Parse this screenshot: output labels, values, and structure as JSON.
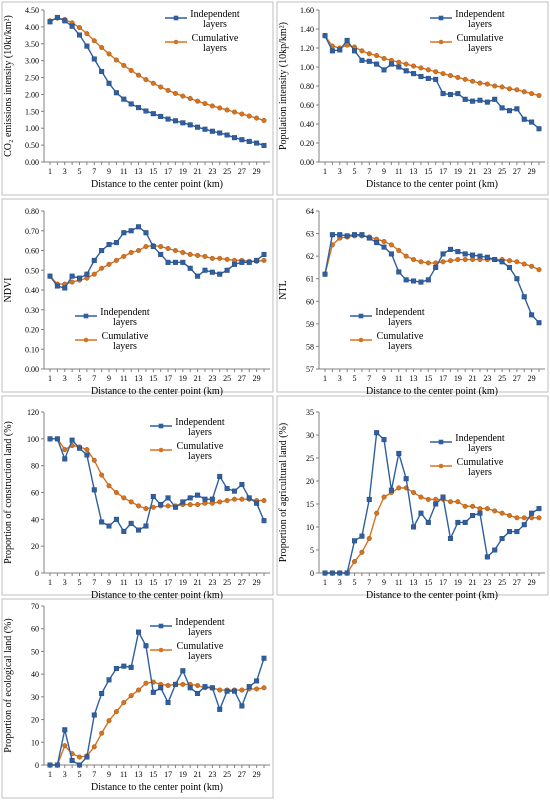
{
  "colors": {
    "independent": "#2e5fa1",
    "cumulative": "#d7731e",
    "axis": "#808080",
    "frame": "#bfbfbf"
  },
  "chart_data": [
    {
      "id": "co2",
      "type": "line",
      "title": "",
      "xlabel": "Distance to the center point (km)",
      "ylabel": "CO₂ emissions intensity (10kt/km²)",
      "x": [
        1,
        2,
        3,
        4,
        5,
        6,
        7,
        8,
        9,
        10,
        11,
        12,
        13,
        14,
        15,
        16,
        17,
        18,
        19,
        20,
        21,
        22,
        23,
        24,
        25,
        26,
        27,
        28,
        29,
        30
      ],
      "x_tick_labels": [
        "1",
        "3",
        "5",
        "7",
        "9",
        "11",
        "13",
        "15",
        "17",
        "19",
        "21",
        "23",
        "25",
        "27",
        "29"
      ],
      "ylim": [
        0,
        4.5
      ],
      "y_ticks": [
        0,
        0.5,
        1,
        1.5,
        2,
        2.5,
        3,
        3.5,
        4,
        4.5
      ],
      "y_tick_labels": [
        "0.00",
        "0.50",
        "1.00",
        "1.50",
        "2.00",
        "2.50",
        "3.00",
        "3.50",
        "4.00",
        "4.50"
      ],
      "legend_position": "top-right",
      "series": [
        {
          "name": "Independent layers",
          "values": [
            4.15,
            4.28,
            4.18,
            4.02,
            3.76,
            3.43,
            3.05,
            2.68,
            2.33,
            2.05,
            1.86,
            1.72,
            1.61,
            1.51,
            1.43,
            1.35,
            1.27,
            1.22,
            1.16,
            1.1,
            1.03,
            0.97,
            0.91,
            0.86,
            0.8,
            0.72,
            0.66,
            0.61,
            0.56,
            0.49
          ]
        },
        {
          "name": "Cumulative layers",
          "values": [
            4.18,
            4.26,
            4.22,
            4.12,
            3.98,
            3.8,
            3.59,
            3.39,
            3.2,
            3.02,
            2.86,
            2.71,
            2.57,
            2.44,
            2.33,
            2.22,
            2.12,
            2.03,
            1.95,
            1.88,
            1.8,
            1.73,
            1.66,
            1.6,
            1.54,
            1.48,
            1.42,
            1.36,
            1.3,
            1.23
          ]
        }
      ]
    },
    {
      "id": "population",
      "type": "line",
      "title": "",
      "xlabel": "Distance to the center point (km)",
      "ylabel": "Population intensity (10kp/km²)",
      "x": [
        1,
        2,
        3,
        4,
        5,
        6,
        7,
        8,
        9,
        10,
        11,
        12,
        13,
        14,
        15,
        16,
        17,
        18,
        19,
        20,
        21,
        22,
        23,
        24,
        25,
        26,
        27,
        28,
        29,
        30
      ],
      "x_tick_labels": [
        "1",
        "3",
        "5",
        "7",
        "9",
        "11",
        "13",
        "15",
        "17",
        "19",
        "21",
        "23",
        "25",
        "27",
        "29"
      ],
      "ylim": [
        0,
        1.6
      ],
      "y_ticks": [
        0,
        0.2,
        0.4,
        0.6,
        0.8,
        1.0,
        1.2,
        1.4,
        1.6
      ],
      "y_tick_labels": [
        "0.00",
        "0.20",
        "0.40",
        "0.60",
        "0.80",
        "1.00",
        "1.20",
        "1.40",
        "1.60"
      ],
      "legend_position": "top-right",
      "series": [
        {
          "name": "Independent layers",
          "values": [
            1.33,
            1.17,
            1.18,
            1.28,
            1.17,
            1.07,
            1.06,
            1.03,
            0.97,
            1.03,
            1.0,
            0.96,
            0.93,
            0.9,
            0.88,
            0.87,
            0.72,
            0.71,
            0.72,
            0.66,
            0.64,
            0.65,
            0.63,
            0.66,
            0.57,
            0.54,
            0.56,
            0.45,
            0.42,
            0.35
          ]
        },
        {
          "name": "Cumulative layers",
          "values": [
            1.33,
            1.22,
            1.2,
            1.23,
            1.21,
            1.17,
            1.14,
            1.12,
            1.09,
            1.07,
            1.05,
            1.03,
            1.01,
            0.99,
            0.97,
            0.95,
            0.93,
            0.91,
            0.89,
            0.87,
            0.85,
            0.83,
            0.82,
            0.8,
            0.79,
            0.77,
            0.76,
            0.74,
            0.72,
            0.7
          ]
        }
      ]
    },
    {
      "id": "ndvi",
      "type": "line",
      "title": "",
      "xlabel": "Distance to the center point (km)",
      "ylabel": "NDVI",
      "x": [
        1,
        2,
        3,
        4,
        5,
        6,
        7,
        8,
        9,
        10,
        11,
        12,
        13,
        14,
        15,
        16,
        17,
        18,
        19,
        20,
        21,
        22,
        23,
        24,
        25,
        26,
        27,
        28,
        29,
        30
      ],
      "x_tick_labels": [
        "1",
        "3",
        "5",
        "7",
        "9",
        "11",
        "13",
        "15",
        "17",
        "19",
        "21",
        "23",
        "25",
        "27",
        "29"
      ],
      "ylim": [
        0,
        0.8
      ],
      "y_ticks": [
        0,
        0.1,
        0.2,
        0.3,
        0.4,
        0.5,
        0.6,
        0.7,
        0.8
      ],
      "y_tick_labels": [
        "0.00",
        "0.10",
        "0.20",
        "0.30",
        "0.40",
        "0.50",
        "0.60",
        "0.70",
        "0.80"
      ],
      "legend_position": "bottom-left",
      "series": [
        {
          "name": "Independent layers",
          "values": [
            0.47,
            0.42,
            0.41,
            0.47,
            0.46,
            0.48,
            0.55,
            0.6,
            0.63,
            0.64,
            0.69,
            0.7,
            0.72,
            0.69,
            0.62,
            0.58,
            0.54,
            0.54,
            0.54,
            0.51,
            0.47,
            0.5,
            0.49,
            0.48,
            0.5,
            0.53,
            0.54,
            0.54,
            0.55,
            0.58
          ]
        },
        {
          "name": "Cumulative layers",
          "values": [
            0.47,
            0.43,
            0.43,
            0.44,
            0.45,
            0.46,
            0.48,
            0.51,
            0.53,
            0.55,
            0.57,
            0.59,
            0.6,
            0.62,
            0.625,
            0.62,
            0.61,
            0.6,
            0.59,
            0.58,
            0.575,
            0.57,
            0.56,
            0.56,
            0.555,
            0.55,
            0.55,
            0.545,
            0.545,
            0.55
          ]
        }
      ]
    },
    {
      "id": "ntl",
      "type": "line",
      "title": "",
      "xlabel": "Distance to the center point (km)",
      "ylabel": "NTL",
      "x": [
        1,
        2,
        3,
        4,
        5,
        6,
        7,
        8,
        9,
        10,
        11,
        12,
        13,
        14,
        15,
        16,
        17,
        18,
        19,
        20,
        21,
        22,
        23,
        24,
        25,
        26,
        27,
        28,
        29,
        30
      ],
      "x_tick_labels": [
        "1",
        "3",
        "5",
        "7",
        "9",
        "11",
        "13",
        "15",
        "17",
        "19",
        "21",
        "23",
        "25",
        "27",
        "29"
      ],
      "ylim": [
        57,
        64
      ],
      "y_ticks": [
        57,
        58,
        59,
        60,
        61,
        62,
        63,
        64
      ],
      "y_tick_labels": [
        "57",
        "58",
        "59",
        "60",
        "61",
        "62",
        "63",
        "64"
      ],
      "legend_position": "bottom-center",
      "series": [
        {
          "name": "Independent layers",
          "values": [
            61.2,
            62.95,
            62.95,
            62.9,
            62.95,
            62.95,
            62.8,
            62.6,
            62.4,
            62.1,
            61.3,
            60.95,
            60.9,
            60.85,
            60.95,
            61.5,
            62.1,
            62.3,
            62.2,
            62.1,
            62.05,
            62.0,
            61.95,
            61.85,
            61.75,
            61.5,
            61.0,
            60.2,
            59.4,
            59.05
          ]
        },
        {
          "name": "Cumulative layers",
          "values": [
            61.2,
            62.5,
            62.8,
            62.85,
            62.9,
            62.9,
            62.85,
            62.75,
            62.65,
            62.5,
            62.25,
            62.0,
            61.85,
            61.75,
            61.7,
            61.7,
            61.75,
            61.8,
            61.85,
            61.85,
            61.85,
            61.85,
            61.85,
            61.85,
            61.85,
            61.8,
            61.75,
            61.65,
            61.55,
            61.4
          ]
        }
      ]
    },
    {
      "id": "construction",
      "type": "line",
      "title": "",
      "xlabel": "Distance to the center point (km)",
      "ylabel": "Proportion of construction land (%)",
      "x": [
        1,
        2,
        3,
        4,
        5,
        6,
        7,
        8,
        9,
        10,
        11,
        12,
        13,
        14,
        15,
        16,
        17,
        18,
        19,
        20,
        21,
        22,
        23,
        24,
        25,
        26,
        27,
        28,
        29,
        30
      ],
      "x_tick_labels": [
        "1",
        "3",
        "5",
        "7",
        "9",
        "11",
        "13",
        "15",
        "17",
        "19",
        "21",
        "23",
        "25",
        "27",
        "29"
      ],
      "ylim": [
        0,
        120
      ],
      "y_ticks": [
        0,
        20,
        40,
        60,
        80,
        100,
        120
      ],
      "y_tick_labels": [
        "0",
        "20",
        "40",
        "60",
        "80",
        "100",
        "120"
      ],
      "legend_position": "top-right",
      "series": [
        {
          "name": "Independent layers",
          "values": [
            100,
            100,
            85,
            99,
            93,
            88,
            62,
            38,
            35,
            40,
            31,
            37,
            32,
            35,
            57,
            51,
            56,
            49,
            53,
            56,
            58,
            55,
            55,
            72,
            63,
            61,
            66,
            56,
            52,
            39
          ]
        },
        {
          "name": "Cumulative layers",
          "values": [
            100,
            100,
            92,
            95,
            94,
            92,
            84,
            73,
            65,
            60,
            56,
            53,
            50,
            48,
            49,
            50,
            50,
            50,
            51,
            51,
            51,
            52,
            52,
            53,
            54,
            55,
            55,
            55,
            54,
            54
          ]
        }
      ]
    },
    {
      "id": "agricultural",
      "type": "line",
      "title": "",
      "xlabel": "Distance to the center point (km)",
      "ylabel": "Proportion of agricultural land (%)",
      "x": [
        1,
        2,
        3,
        4,
        5,
        6,
        7,
        8,
        9,
        10,
        11,
        12,
        13,
        14,
        15,
        16,
        17,
        18,
        19,
        20,
        21,
        22,
        23,
        24,
        25,
        26,
        27,
        28,
        29,
        30
      ],
      "x_tick_labels": [
        "1",
        "3",
        "5",
        "7",
        "9",
        "11",
        "13",
        "15",
        "17",
        "19",
        "21",
        "23",
        "25",
        "27",
        "29"
      ],
      "ylim": [
        0,
        35
      ],
      "y_ticks": [
        0,
        5,
        10,
        15,
        20,
        25,
        30,
        35
      ],
      "y_tick_labels": [
        "0",
        "5",
        "10",
        "15",
        "20",
        "25",
        "30",
        "35"
      ],
      "legend_position": "top-right",
      "series": [
        {
          "name": "Independent layers",
          "values": [
            0,
            0,
            0,
            0,
            7,
            8,
            16,
            30.5,
            29,
            18,
            26,
            20.5,
            10,
            13,
            11,
            15,
            16.5,
            7.5,
            11,
            11,
            12.5,
            13,
            3.5,
            5,
            7.5,
            9,
            9,
            10.5,
            13,
            14
          ]
        },
        {
          "name": "Cumulative layers",
          "values": [
            0,
            0,
            0,
            0,
            2.5,
            4.5,
            7.5,
            13,
            16.5,
            17.5,
            18.5,
            18.5,
            17.5,
            16.5,
            16,
            16,
            16,
            15.5,
            15.5,
            14.5,
            14.5,
            14,
            14,
            13.5,
            13,
            12.5,
            12,
            12,
            12,
            12
          ]
        }
      ]
    },
    {
      "id": "ecological",
      "type": "line",
      "title": "",
      "xlabel": "Distance to the center point (km)",
      "ylabel": "Proportion of ecological land (%)",
      "x": [
        1,
        2,
        3,
        4,
        5,
        6,
        7,
        8,
        9,
        10,
        11,
        12,
        13,
        14,
        15,
        16,
        17,
        18,
        19,
        20,
        21,
        22,
        23,
        24,
        25,
        26,
        27,
        28,
        29,
        30
      ],
      "x_tick_labels": [
        "1",
        "3",
        "5",
        "7",
        "9",
        "11",
        "13",
        "15",
        "17",
        "19",
        "21",
        "23",
        "25",
        "27",
        "29"
      ],
      "ylim": [
        0,
        70
      ],
      "y_ticks": [
        0,
        10,
        20,
        30,
        40,
        50,
        60,
        70
      ],
      "y_tick_labels": [
        "0",
        "10",
        "20",
        "30",
        "40",
        "50",
        "60",
        "70"
      ],
      "legend_position": "top-right",
      "series": [
        {
          "name": "Independent layers",
          "values": [
            0,
            0,
            15.5,
            2,
            0,
            3.5,
            22,
            31.5,
            37.5,
            42.5,
            43.5,
            43,
            58.5,
            52.5,
            32,
            34,
            27.5,
            35.5,
            41.5,
            34,
            31.5,
            34.5,
            34,
            24.5,
            32.5,
            32.5,
            26,
            34.5,
            37,
            47
          ]
        },
        {
          "name": "Cumulative layers",
          "values": [
            0,
            0,
            8.5,
            5,
            3.5,
            4,
            8,
            14,
            19.5,
            23.5,
            27.5,
            30.5,
            33,
            36,
            36.5,
            35.5,
            35,
            35.5,
            35.5,
            35.5,
            35,
            34,
            34,
            33,
            33,
            33,
            33,
            33.5,
            33.5,
            34
          ]
        }
      ]
    }
  ]
}
